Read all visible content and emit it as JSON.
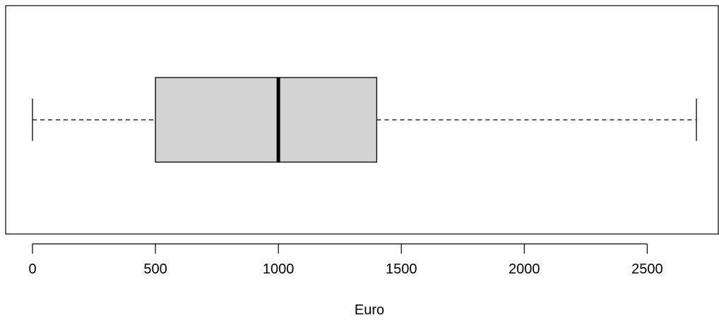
{
  "chart_data": {
    "type": "boxplot",
    "orientation": "horizontal",
    "series": [
      {
        "min": 0,
        "q1": 500,
        "median": 1000,
        "q3": 1400,
        "max": 2700
      }
    ],
    "xlabel": "Euro",
    "xlim": [
      -110,
      2800
    ],
    "ticks": [
      0,
      500,
      1000,
      1500,
      2000,
      2500
    ],
    "tick_labels": [
      "0",
      "500",
      "1000",
      "1500",
      "2000",
      "2500"
    ],
    "box_color": "#d3d3d3",
    "line_color": "#000000",
    "grid": false
  }
}
